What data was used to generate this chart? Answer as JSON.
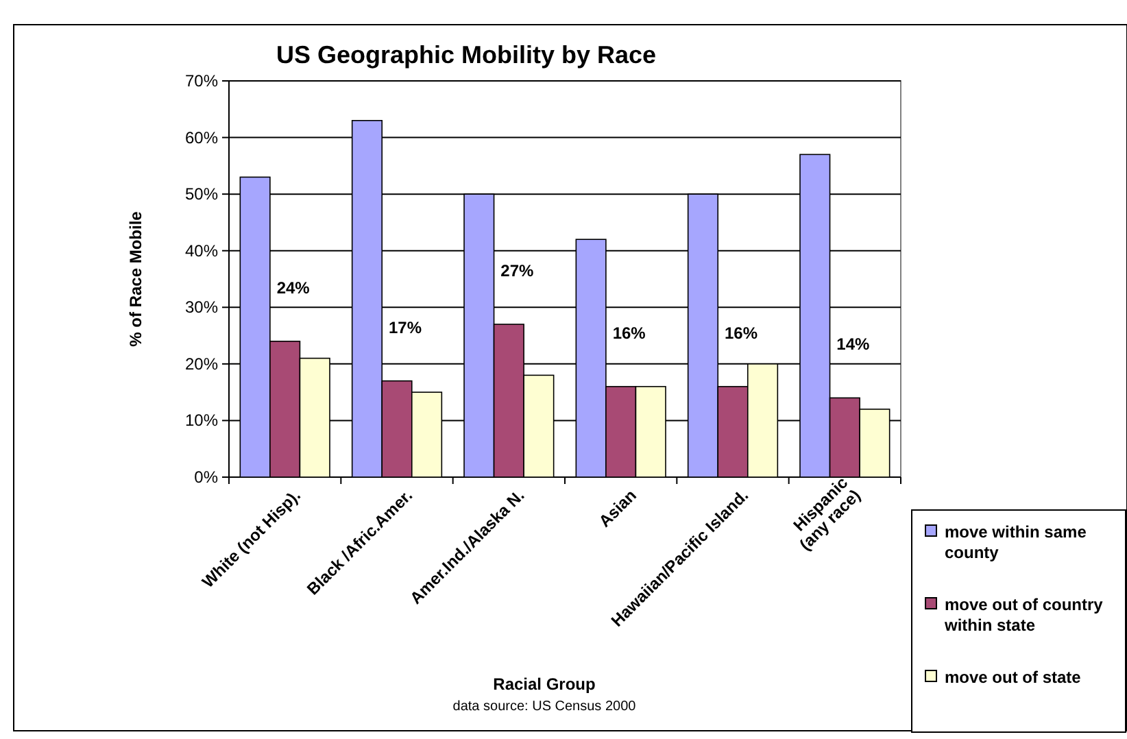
{
  "chart_data": {
    "type": "bar",
    "title": "US Geographic Mobility by Race",
    "xlabel": "Racial Group",
    "ylabel": "% of Race Mobile",
    "annotations": [
      "data source: US Census 2000"
    ],
    "categories": [
      "White (not Hisp).",
      "Black /Afric.Amer.",
      "Amer.Ind./Alaska N.",
      "Asian",
      "Hawaiian/Pacific Island.",
      "Hispanic\n(any race)"
    ],
    "series": [
      {
        "name": "move within same county",
        "color": "#a6a6fe",
        "values": [
          53,
          63,
          50,
          42,
          50,
          57
        ]
      },
      {
        "name": "move out of country within state",
        "color": "#a84a74",
        "values": [
          24,
          17,
          27,
          16,
          16,
          14
        ],
        "value_labels": [
          "24%",
          "17%",
          "27%",
          "16%",
          "16%",
          "14%"
        ]
      },
      {
        "name": "move out of state",
        "color": "#fefed2",
        "values": [
          21,
          15,
          18,
          16,
          20,
          12
        ]
      }
    ],
    "ylim": [
      0,
      70
    ],
    "yticks": [
      {
        "value": 0,
        "label": "0%"
      },
      {
        "value": 10,
        "label": "10%"
      },
      {
        "value": 20,
        "label": "20%"
      },
      {
        "value": 30,
        "label": "30%"
      },
      {
        "value": 40,
        "label": "40%"
      },
      {
        "value": 50,
        "label": "50%"
      },
      {
        "value": 60,
        "label": "60%"
      },
      {
        "value": 70,
        "label": "70%"
      }
    ],
    "grid": "y",
    "legend": "bottom right"
  }
}
